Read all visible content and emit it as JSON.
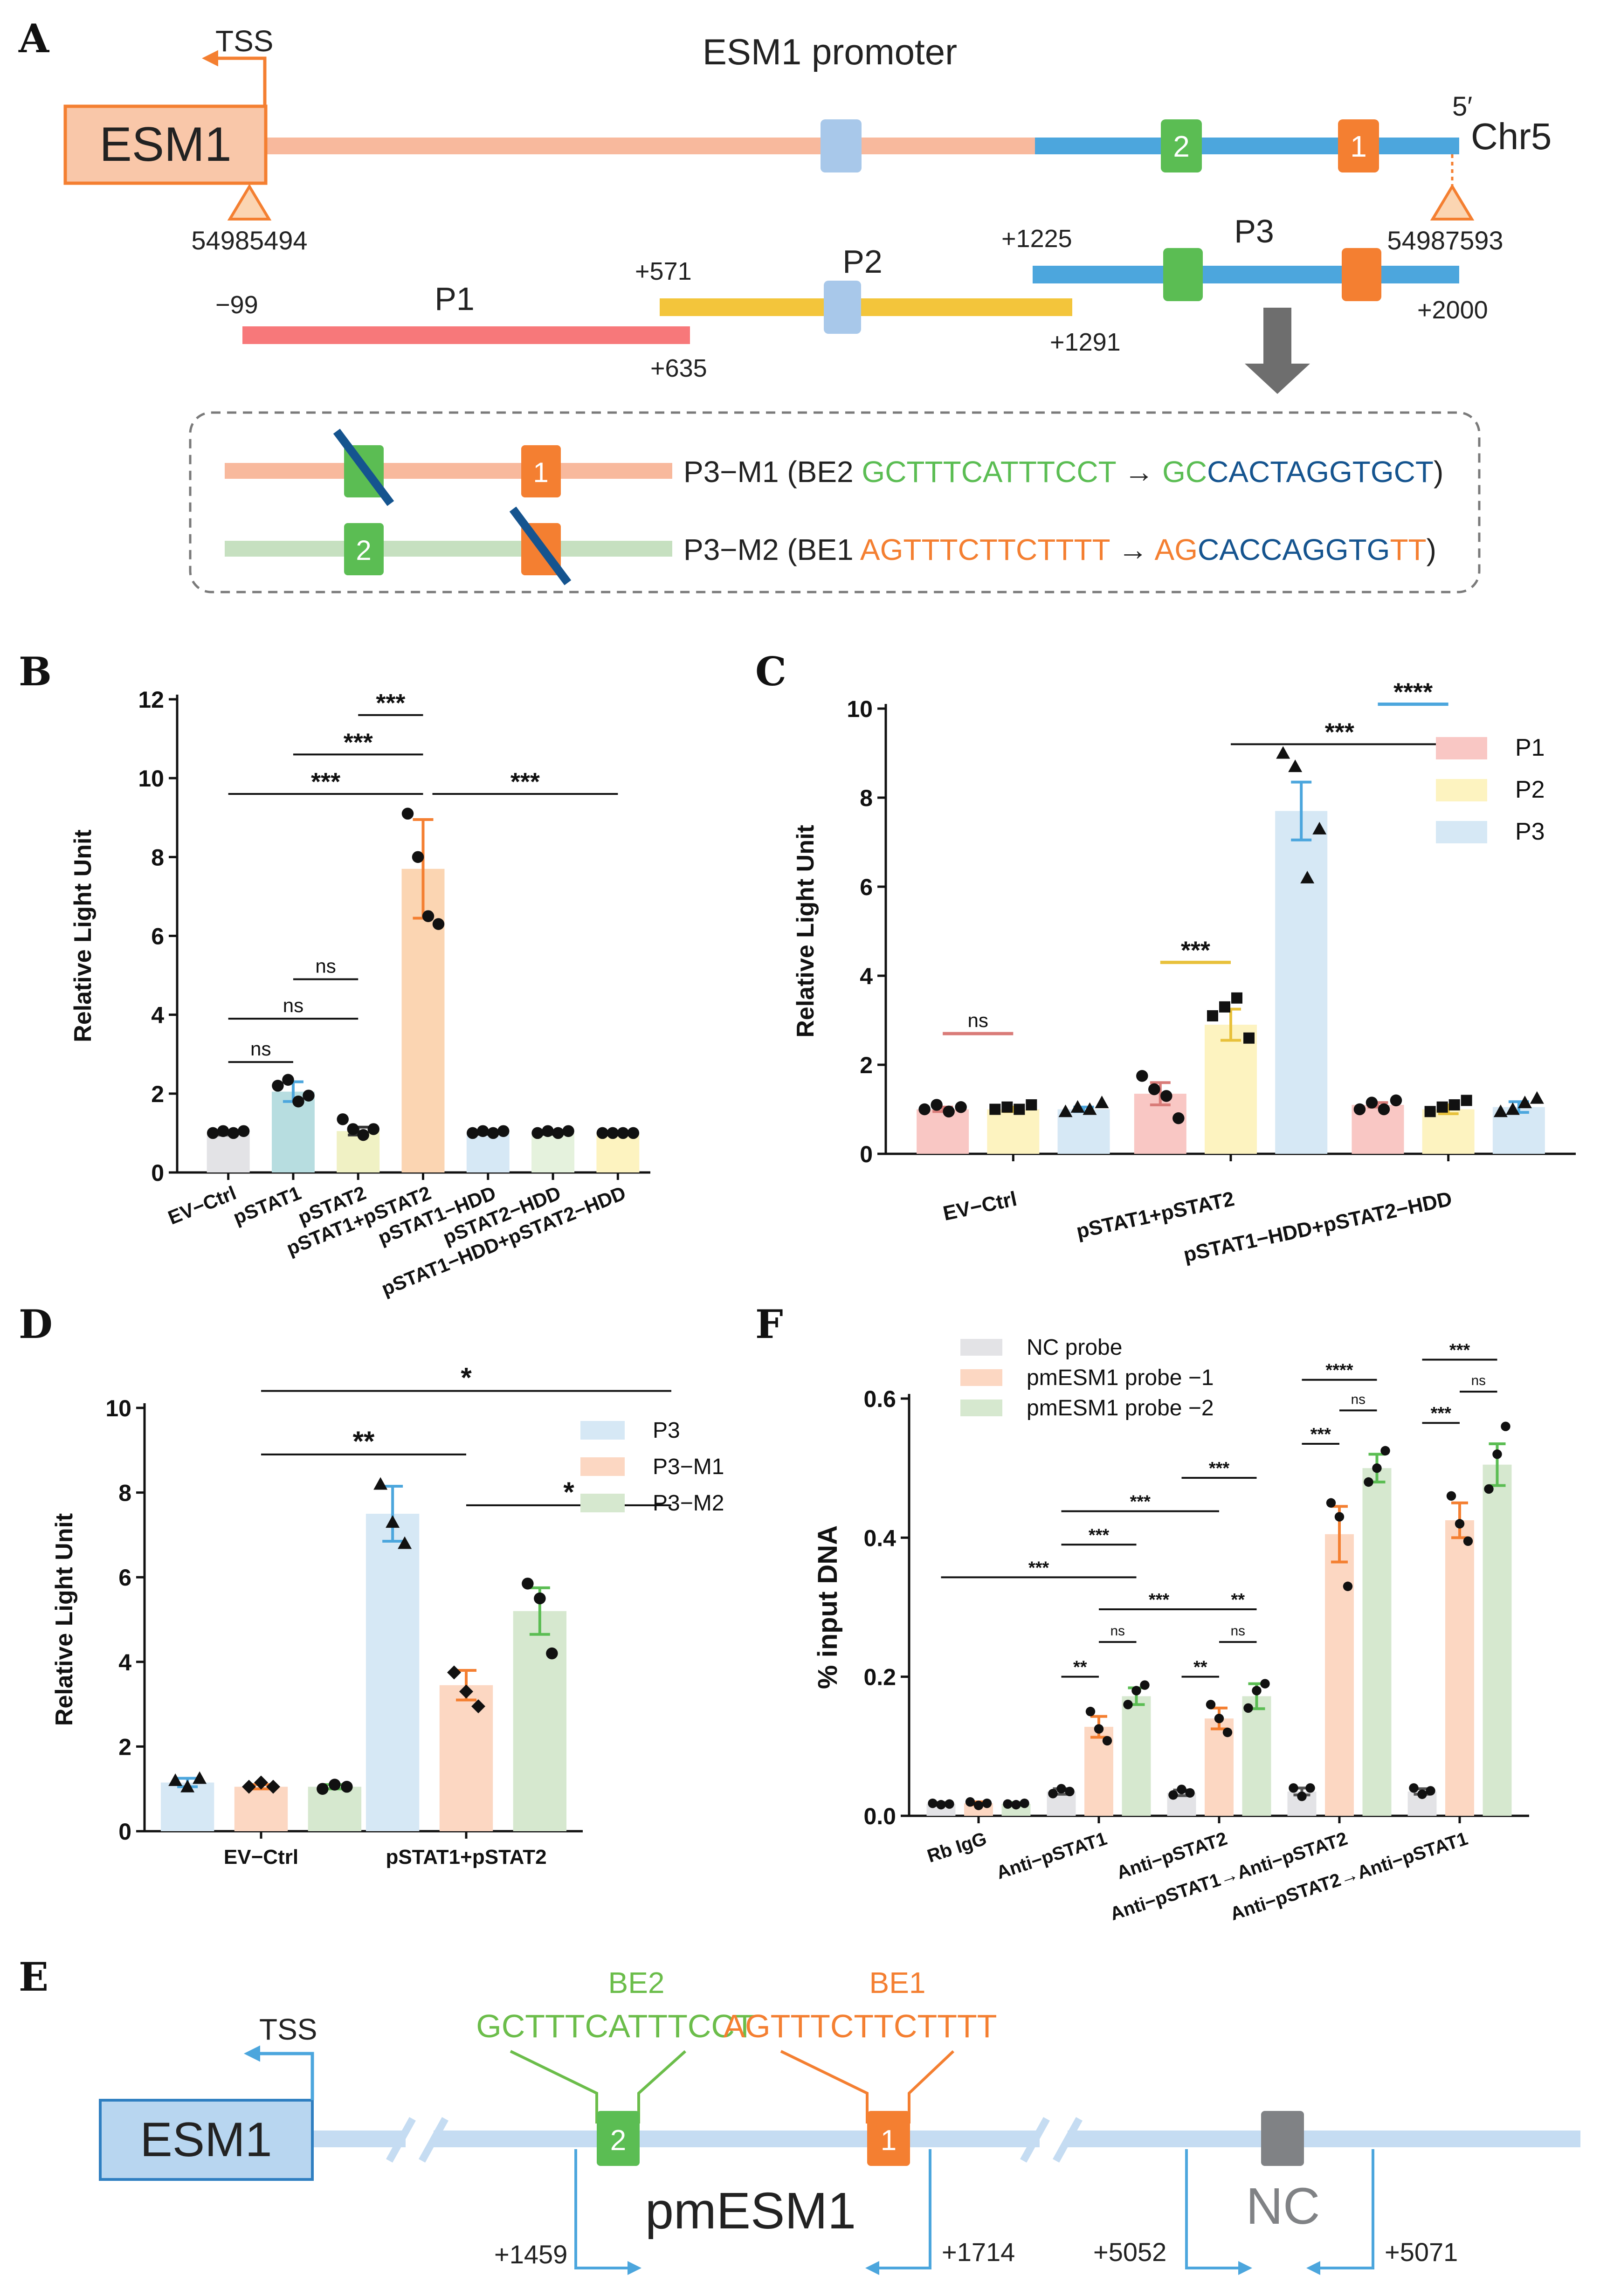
{
  "colors": {
    "salmon": "#f8b99d",
    "ltblue": "#a8c8ea",
    "green": "#5bbd53",
    "orange": "#f47f31",
    "sky": "#4ca6dd",
    "pink": "#f7787a",
    "yellow": "#f3c53b",
    "navy": "#15548f",
    "lime": "#6bbd4a",
    "ctrl": "#e3e3e6",
    "teal": "#b7dde0",
    "pale": "#f0f1c4",
    "peach": "#fbd5b2",
    "mint": "#e5f2dd",
    "rose": "#f9c7c4",
    "cream": "#fdf3c0",
    "ice": "#d6e8f5",
    "apricot": "#fcd7c2",
    "sage": "#d6e8cf",
    "grey": "#808285"
  },
  "panels": {
    "A": "A",
    "B": "B",
    "C": "C",
    "D": "D",
    "E": "E",
    "F": "F"
  },
  "panelA": {
    "title": "ESM1 promoter",
    "gene": "ESM1",
    "tss": "TSS",
    "strand": "5′",
    "chrom": "Chr5",
    "coord_left": "54985494",
    "coord_right": "54987593",
    "box2": "2",
    "box1": "1",
    "fragments": [
      {
        "name": "P1",
        "start": "−99",
        "end": "+635"
      },
      {
        "name": "P2",
        "start": "+571",
        "end": "+1291"
      },
      {
        "name": "P3",
        "start": "+1225",
        "end": "+2000"
      }
    ],
    "m1": {
      "prefix": "P3−M1 (BE2 ",
      "wt": "GCTTTCATTTCCT",
      "arrow": " → ",
      "mut_a": "GC",
      "mut_b": "CACTAGGTGCT",
      "close": ")"
    },
    "m2": {
      "prefix": "P3−M2 (BE1 ",
      "wt": "AGTTTCTTCTTTT",
      "arrow": " → ",
      "mut_a": "AG",
      "mut_b": "CACCAGGTG",
      "mut_c": "TT",
      "close": ")"
    }
  },
  "panelE": {
    "gene": "ESM1",
    "tss": "TSS",
    "be2": "BE2",
    "be1": "BE1",
    "seq2": "GCTTTCATTTCCT",
    "seq1": "AGTTTCTTCTTTT",
    "box2": "2",
    "box1": "1",
    "region": "pmESM1",
    "nc": "NC",
    "c1": "+1459",
    "c2": "+1714",
    "c3": "+5052",
    "c4": "+5071"
  },
  "chart_data": [
    {
      "panel": "B",
      "type": "bar",
      "categories": [
        "EV−Ctrl",
        "pSTAT1",
        "pSTAT2",
        "pSTAT1+pSTAT2",
        "pSTAT1−HDD",
        "pSTAT2−HDD",
        "pSTAT1−HDD+pSTAT2−HDD"
      ],
      "values": [
        1.0,
        2.05,
        1.05,
        7.7,
        1.0,
        1.0,
        1.0
      ],
      "errors": [
        0.05,
        0.25,
        0.1,
        1.25,
        0.03,
        0.03,
        0.02
      ],
      "points": [
        [
          1.0,
          1.05,
          1.0,
          1.05
        ],
        [
          2.2,
          2.35,
          1.8,
          1.95
        ],
        [
          1.35,
          1.1,
          0.95,
          1.1
        ],
        [
          9.1,
          8.0,
          6.5,
          6.3
        ],
        [
          1.0,
          1.05,
          1.0,
          1.05
        ],
        [
          1.0,
          1.05,
          1.0,
          1.05
        ],
        [
          1.0,
          1.0,
          1.0,
          1.0
        ]
      ],
      "bar_colors": [
        "#e3e3e6",
        "#b7dde0",
        "#f0f1c4",
        "#fbd5b2",
        "#d6e8f5",
        "#e5f2dd",
        "#fdf3c0"
      ],
      "err_colors": [
        "#555555",
        "#4ca6dd",
        "#333333",
        "#f47f31",
        "#333333",
        "#333333",
        "#333333"
      ],
      "ylabel": "Relative Light Unit",
      "ylim": [
        0,
        12
      ],
      "yticks": [
        "0",
        "2",
        "4",
        "6",
        "8",
        "10",
        "12"
      ],
      "significance": [
        {
          "label": "ns",
          "from": 0,
          "to": 1,
          "y": 2.8
        },
        {
          "label": "ns",
          "from": 0,
          "to": 2,
          "y": 3.9
        },
        {
          "label": "ns",
          "from": 1,
          "to": 2,
          "y": 4.9
        },
        {
          "label": "***",
          "from": 0,
          "to": 3,
          "y": 9.6
        },
        {
          "label": "***",
          "from": 1,
          "to": 3,
          "y": 10.6
        },
        {
          "label": "***",
          "from": 2,
          "to": 3,
          "y": 11.6
        },
        {
          "label": "***",
          "from": 3,
          "to": 6,
          "y": 9.6
        }
      ]
    },
    {
      "panel": "C",
      "type": "bar",
      "categories": [
        "EV−Ctrl",
        "pSTAT1+pSTAT2",
        "pSTAT1−HDD+pSTAT2−HDD"
      ],
      "series": [
        {
          "name": "P1",
          "color": "#f9c7c4",
          "err": "#d97b78",
          "values": [
            1.0,
            1.35,
            1.1
          ],
          "errors": [
            0.05,
            0.25,
            0.05
          ],
          "points": [
            [
              1.0,
              1.1,
              0.95,
              1.05
            ],
            [
              1.75,
              1.45,
              1.3,
              0.8
            ],
            [
              1.0,
              1.15,
              1.0,
              1.2
            ]
          ]
        },
        {
          "name": "P2",
          "color": "#fdf3c0",
          "err": "#e8c13b",
          "values": [
            1.0,
            2.9,
            1.0
          ],
          "errors": [
            0.05,
            0.35,
            0.1
          ],
          "points": [
            [
              1.0,
              1.05,
              1.0,
              1.1
            ],
            [
              3.1,
              3.3,
              3.5,
              2.6
            ],
            [
              0.95,
              1.05,
              1.1,
              1.2
            ]
          ]
        },
        {
          "name": "P3",
          "color": "#d6e8f5",
          "err": "#4ca6dd",
          "values": [
            1.0,
            7.7,
            1.05
          ],
          "errors": [
            0.05,
            0.65,
            0.12
          ],
          "points": [
            [
              0.95,
              1.05,
              1.0,
              1.15
            ],
            [
              9.0,
              8.7,
              6.2,
              7.3
            ],
            [
              0.95,
              1.0,
              1.15,
              1.25
            ]
          ]
        }
      ],
      "ylabel": "Relative Light Unit",
      "ylim": [
        0,
        10
      ],
      "yticks": [
        "0",
        "2",
        "4",
        "6",
        "8",
        "10"
      ],
      "legend": "top-right",
      "significance": [
        {
          "label": "ns",
          "x1": [
            0,
            0
          ],
          "x2": [
            1,
            0
          ],
          "y": 2.7,
          "color": "#d97b78"
        },
        {
          "label": "***",
          "x1": [
            0,
            1
          ],
          "x2": [
            1,
            1
          ],
          "y": 4.3,
          "color": "#e8c13b"
        },
        {
          "label": "***",
          "x1": [
            1,
            1
          ],
          "x2": [
            1,
            2
          ],
          "y": 9.2,
          "color": "#111111"
        },
        {
          "label": "****",
          "x1": [
            0,
            2
          ],
          "x2": [
            1,
            2
          ],
          "y": 10.1,
          "color": "#4ca6dd"
        }
      ]
    },
    {
      "panel": "D",
      "type": "bar",
      "categories": [
        "EV−Ctrl",
        "pSTAT1+pSTAT2"
      ],
      "series": [
        {
          "name": "P3",
          "color": "#d6e8f5",
          "err": "#4ca6dd",
          "values": [
            1.15,
            7.5
          ],
          "errors": [
            0.1,
            0.65
          ],
          "points": [
            [
              1.2,
              1.05,
              1.25
            ],
            [
              8.2,
              7.3,
              6.8
            ]
          ]
        },
        {
          "name": "P3−M1",
          "color": "#fcd7c2",
          "err": "#f47f31",
          "values": [
            1.05,
            3.45
          ],
          "errors": [
            0.05,
            0.35
          ],
          "points": [
            [
              1.05,
              1.15,
              1.05
            ],
            [
              3.75,
              3.3,
              2.95
            ]
          ]
        },
        {
          "name": "P3−M2",
          "color": "#d6e8cf",
          "err": "#5bbd53",
          "values": [
            1.05,
            5.2
          ],
          "errors": [
            0.05,
            0.55
          ],
          "points": [
            [
              1.0,
              1.1,
              1.05
            ],
            [
              5.85,
              5.5,
              4.2
            ]
          ]
        }
      ],
      "ylabel": "Relative Light Unit",
      "ylim": [
        0,
        10
      ],
      "yticks": [
        "0",
        "2",
        "4",
        "6",
        "8",
        "10"
      ],
      "legend": "top-right",
      "significance": [
        {
          "label": "**",
          "x1": [
            1,
            0
          ],
          "x2": [
            1,
            1
          ],
          "y": 8.9
        },
        {
          "label": "*",
          "x1": [
            1,
            1
          ],
          "x2": [
            1,
            2
          ],
          "y": 7.7
        },
        {
          "label": "*",
          "x1": [
            1,
            0
          ],
          "x2": [
            1,
            2
          ],
          "y": 10.4
        }
      ]
    },
    {
      "panel": "F",
      "type": "bar",
      "categories": [
        "Rb IgG",
        "Anti−pSTAT1",
        "Anti−pSTAT2",
        "Anti−pSTAT1→Anti−pSTAT2",
        "Anti−pSTAT2→Anti−pSTAT1"
      ],
      "series": [
        {
          "name": "NC probe",
          "color": "#e3e3e6",
          "err": "#555555",
          "values": [
            0.017,
            0.035,
            0.033,
            0.035,
            0.035
          ],
          "errors": [
            0.002,
            0.004,
            0.004,
            0.005,
            0.004
          ],
          "points": [
            [
              0.018,
              0.016,
              0.017
            ],
            [
              0.032,
              0.039,
              0.035
            ],
            [
              0.03,
              0.038,
              0.033
            ],
            [
              0.04,
              0.028,
              0.04
            ],
            [
              0.04,
              0.031,
              0.036
            ]
          ]
        },
        {
          "name": "pmESM1 probe −1",
          "color": "#fcd7c2",
          "err": "#f47f31",
          "values": [
            0.018,
            0.128,
            0.14,
            0.405,
            0.425
          ],
          "errors": [
            0.002,
            0.015,
            0.015,
            0.04,
            0.025
          ],
          "points": [
            [
              0.02,
              0.015,
              0.018
            ],
            [
              0.15,
              0.125,
              0.108
            ],
            [
              0.16,
              0.14,
              0.12
            ],
            [
              0.45,
              0.43,
              0.33
            ],
            [
              0.46,
              0.42,
              0.395
            ]
          ]
        },
        {
          "name": "pmESM1 probe −2",
          "color": "#d6e8cf",
          "err": "#5bbd53",
          "values": [
            0.017,
            0.172,
            0.172,
            0.5,
            0.505
          ],
          "errors": [
            0.002,
            0.012,
            0.018,
            0.02,
            0.03
          ],
          "points": [
            [
              0.017,
              0.016,
              0.018
            ],
            [
              0.16,
              0.18,
              0.188
            ],
            [
              0.155,
              0.18,
              0.19
            ],
            [
              0.48,
              0.5,
              0.525
            ],
            [
              0.47,
              0.52,
              0.56
            ]
          ]
        }
      ],
      "ylabel": "% input DNA",
      "ylim": [
        0,
        0.6
      ],
      "yticks": [
        "0.0",
        "0.2",
        "0.4",
        "0.6"
      ],
      "legend": "top-left",
      "significance": [
        {
          "label": "***",
          "x1": [
            0,
            0
          ],
          "x2": [
            2,
            1
          ],
          "y": 0.343
        },
        {
          "label": "***",
          "x1": [
            0,
            1
          ],
          "x2": [
            2,
            1
          ],
          "y": 0.39
        },
        {
          "label": "***",
          "x1": [
            0,
            1
          ],
          "x2": [
            1,
            2
          ],
          "y": 0.438
        },
        {
          "label": "***",
          "x1": [
            0,
            2
          ],
          "x2": [
            2,
            2
          ],
          "y": 0.486
        },
        {
          "label": "***",
          "x1": [
            1,
            1
          ],
          "x2": [
            1,
            2
          ],
          "y": 0.297
        },
        {
          "label": "**",
          "x1": [
            0,
            1
          ],
          "x2": [
            1,
            1
          ],
          "y": 0.2
        },
        {
          "label": "ns",
          "x1": [
            1,
            1
          ],
          "x2": [
            2,
            1
          ],
          "y": 0.25
        },
        {
          "label": "**",
          "x1": [
            1,
            2
          ],
          "x2": [
            2,
            2
          ],
          "y": 0.297
        },
        {
          "label": "**",
          "x1": [
            0,
            2
          ],
          "x2": [
            1,
            2
          ],
          "y": 0.2
        },
        {
          "label": "ns",
          "x1": [
            1,
            2
          ],
          "x2": [
            2,
            2
          ],
          "y": 0.25
        },
        {
          "label": "****",
          "x1": [
            0,
            3
          ],
          "x2": [
            2,
            3
          ],
          "y": 0.627
        },
        {
          "label": "***",
          "x1": [
            0,
            3
          ],
          "x2": [
            1,
            3
          ],
          "y": 0.535
        },
        {
          "label": "ns",
          "x1": [
            1,
            3
          ],
          "x2": [
            2,
            3
          ],
          "y": 0.583
        },
        {
          "label": "***",
          "x1": [
            0,
            4
          ],
          "x2": [
            2,
            4
          ],
          "y": 0.656
        },
        {
          "label": "***",
          "x1": [
            0,
            4
          ],
          "x2": [
            1,
            4
          ],
          "y": 0.565
        },
        {
          "label": "ns",
          "x1": [
            1,
            4
          ],
          "x2": [
            2,
            4
          ],
          "y": 0.61
        }
      ]
    }
  ]
}
